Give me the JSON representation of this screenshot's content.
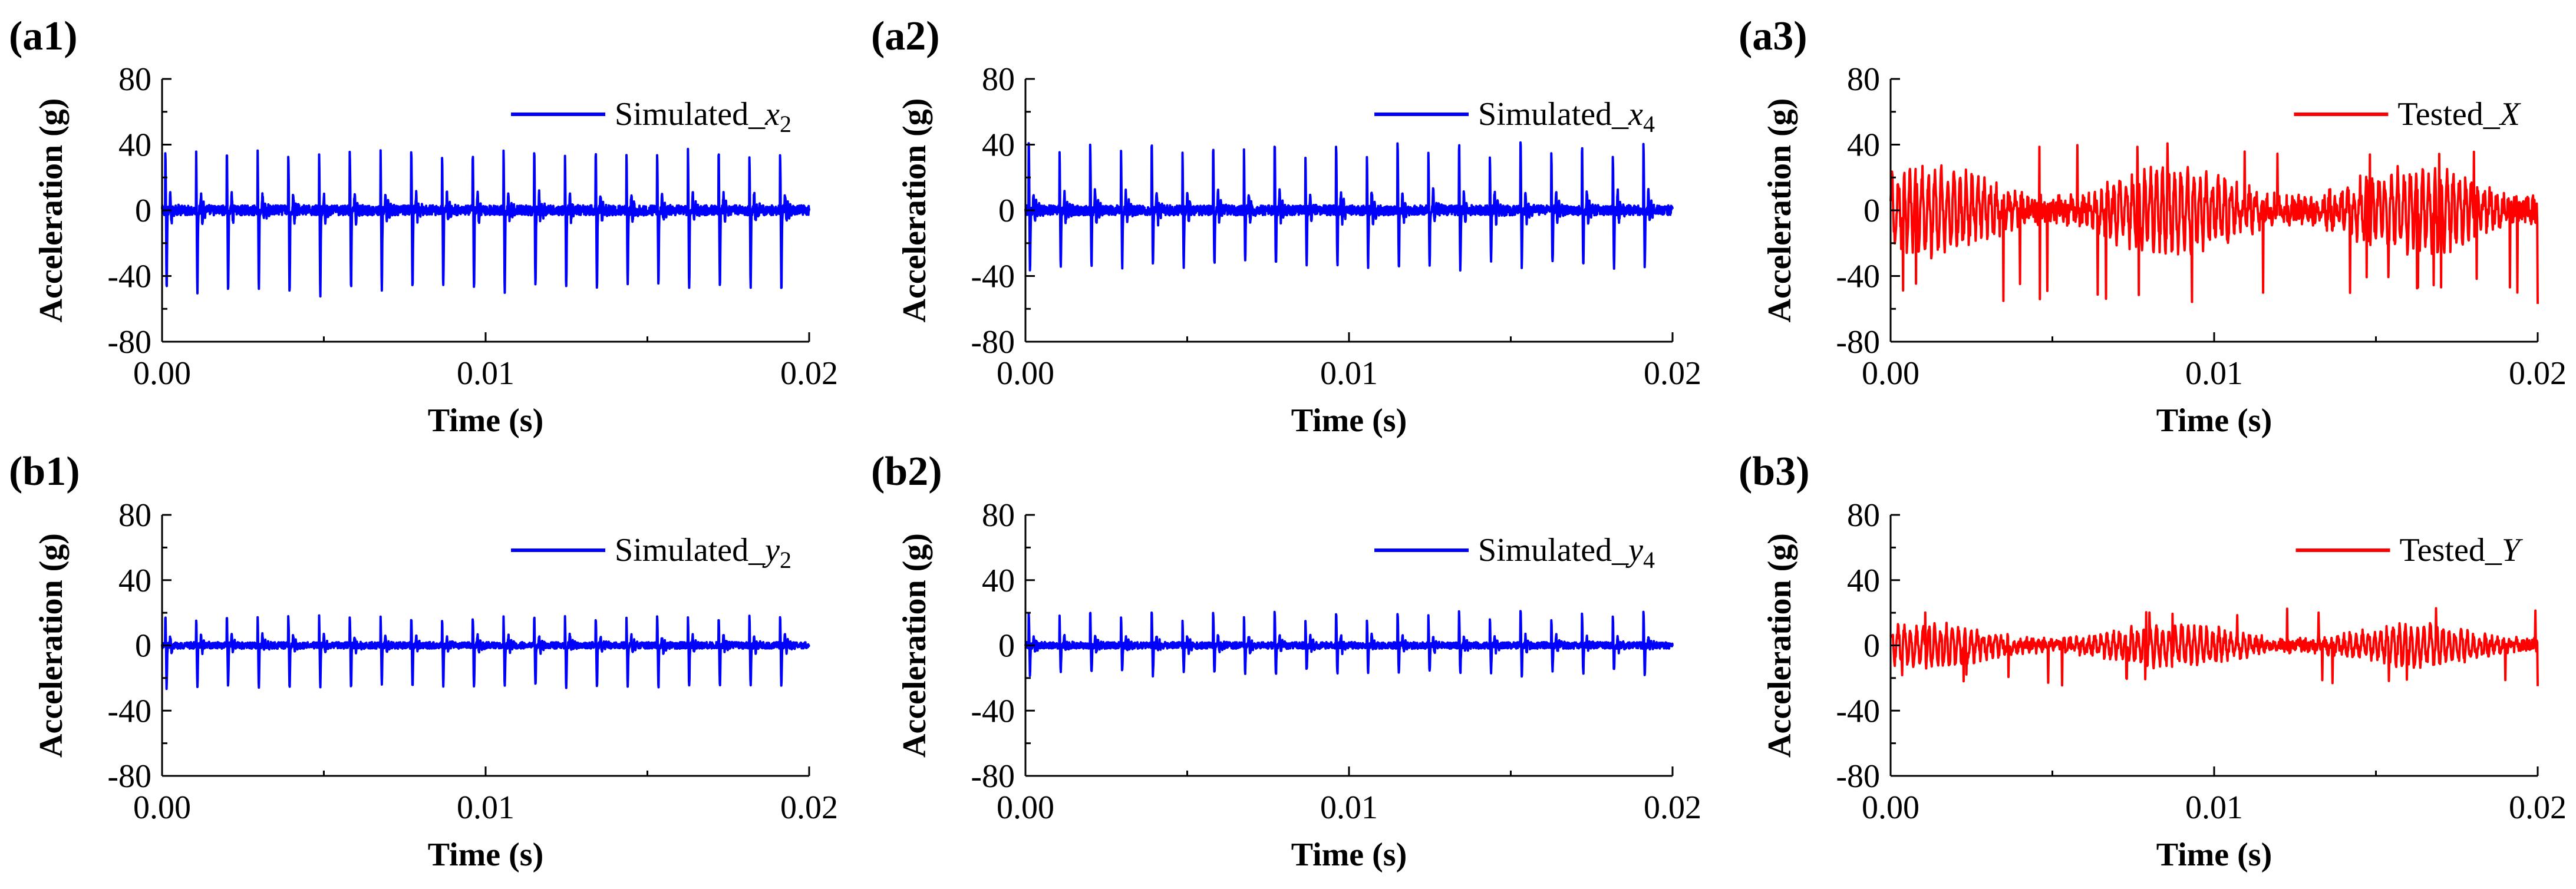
{
  "figure": {
    "panels": [
      "a1",
      "a2",
      "a3",
      "b1",
      "b2",
      "b3"
    ]
  },
  "chart_data": [
    {
      "id": "a1",
      "panel_label": "(a1)",
      "type": "line",
      "xlabel": "Time (s)",
      "ylabel": "Acceleration (g)",
      "xlim": [
        0,
        0.02
      ],
      "ylim": [
        -80,
        80
      ],
      "xticks": [
        0,
        0.01,
        0.02
      ],
      "xtick_labels": [
        "0.00",
        "0.01",
        "0.02"
      ],
      "yticks": [
        -80,
        -40,
        0,
        40,
        80
      ],
      "ytick_labels": [
        "-80",
        "-40",
        "0",
        "40",
        "80"
      ],
      "legend_position": "top-right",
      "series": [
        {
          "name": "Simulated_x2",
          "legend_main": "Simulated_",
          "legend_var": "x",
          "legend_sub": "2",
          "color": "#0000ff",
          "kind": "simulated",
          "period_s": 0.00095,
          "spike_offset_s": 0.0001,
          "peaks_pos": [
            35,
            34,
            35,
            35,
            34,
            35,
            35,
            34,
            35,
            35,
            34,
            35,
            35,
            34,
            35,
            35,
            34,
            35,
            35,
            34,
            35
          ],
          "peaks_neg": [
            -50,
            -49,
            -50,
            -48,
            -49,
            -50,
            -48,
            -49,
            -50,
            -48,
            -49,
            -50,
            -48,
            -49,
            -50,
            -48,
            -49,
            -50,
            -48,
            -49,
            -50
          ],
          "secondary_amp": 12,
          "noise_amp": 3
        }
      ]
    },
    {
      "id": "a2",
      "panel_label": "(a2)",
      "type": "line",
      "xlabel": "Time (s)",
      "ylabel": "Acceleration (g)",
      "xlim": [
        0,
        0.02
      ],
      "ylim": [
        -80,
        80
      ],
      "xticks": [
        0,
        0.01,
        0.02
      ],
      "xtick_labels": [
        "0.00",
        "0.01",
        "0.02"
      ],
      "yticks": [
        -80,
        -40,
        0,
        40,
        80
      ],
      "ytick_labels": [
        "-80",
        "-40",
        "0",
        "40",
        "80"
      ],
      "legend_position": "top-right",
      "series": [
        {
          "name": "Simulated_x4",
          "legend_main": "Simulated_",
          "legend_var": "x",
          "legend_sub": "4",
          "color": "#0000ff",
          "kind": "simulated",
          "period_s": 0.00095,
          "spike_offset_s": 0.0001,
          "peaks_pos": [
            40,
            35,
            40,
            35,
            40,
            35,
            40,
            35,
            40,
            35,
            40,
            35,
            40,
            35,
            40,
            35,
            40,
            35,
            40,
            35,
            40
          ],
          "peaks_neg": [
            -35,
            -33,
            -35,
            -33,
            -35,
            -33,
            -35,
            -33,
            -35,
            -33,
            -35,
            -33,
            -35,
            -33,
            -35,
            -33,
            -35,
            -33,
            -35,
            -33,
            -35
          ],
          "secondary_amp": 14,
          "noise_amp": 3
        }
      ]
    },
    {
      "id": "a3",
      "panel_label": "(a3)",
      "type": "line",
      "xlabel": "Time (s)",
      "ylabel": "Acceleration (g)",
      "xlim": [
        0,
        0.02
      ],
      "ylim": [
        -80,
        80
      ],
      "xticks": [
        0,
        0.01,
        0.02
      ],
      "xtick_labels": [
        "0.00",
        "0.01",
        "0.02"
      ],
      "yticks": [
        -80,
        -40,
        0,
        40,
        80
      ],
      "ytick_labels": [
        "-80",
        "-40",
        "0",
        "40",
        "80"
      ],
      "legend_position": "top-right",
      "series": [
        {
          "name": "Tested_X",
          "legend_main": "Tested_",
          "legend_var": "X",
          "legend_sub": "",
          "color": "#ff0000",
          "kind": "tested",
          "base_amp": 22,
          "max_pos": 42,
          "min_neg": -57
        }
      ]
    },
    {
      "id": "b1",
      "panel_label": "(b1)",
      "type": "line",
      "xlabel": "Time (s)",
      "ylabel": "Acceleration (g)",
      "xlim": [
        0,
        0.02
      ],
      "ylim": [
        -80,
        80
      ],
      "xticks": [
        0,
        0.01,
        0.02
      ],
      "xtick_labels": [
        "0.00",
        "0.01",
        "0.02"
      ],
      "yticks": [
        -80,
        -40,
        0,
        40,
        80
      ],
      "ytick_labels": [
        "-80",
        "-40",
        "0",
        "40",
        "80"
      ],
      "legend_position": "top-right",
      "series": [
        {
          "name": "Simulated_y2",
          "legend_main": "Simulated_",
          "legend_var": "y",
          "legend_sub": "2",
          "color": "#0000ff",
          "kind": "simulated",
          "period_s": 0.00095,
          "spike_offset_s": 0.0001,
          "peaks_pos": [
            18,
            17,
            18,
            17,
            18,
            17,
            18,
            17,
            18,
            17,
            18,
            17,
            18,
            17,
            18,
            17,
            18,
            17,
            18,
            17,
            18
          ],
          "peaks_neg": [
            -26,
            -25,
            -26,
            -25,
            -26,
            -25,
            -26,
            -25,
            -26,
            -25,
            -26,
            -25,
            -26,
            -25,
            -26,
            -25,
            -26,
            -25,
            -26,
            -25,
            -26
          ],
          "secondary_amp": 7,
          "noise_amp": 2
        }
      ]
    },
    {
      "id": "b2",
      "panel_label": "(b2)",
      "type": "line",
      "xlabel": "Time (s)",
      "ylabel": "Acceleration (g)",
      "xlim": [
        0,
        0.02
      ],
      "ylim": [
        -80,
        80
      ],
      "xticks": [
        0,
        0.01,
        0.02
      ],
      "xtick_labels": [
        "0.00",
        "0.01",
        "0.02"
      ],
      "yticks": [
        -80,
        -40,
        0,
        40,
        80
      ],
      "ytick_labels": [
        "-80",
        "-40",
        "0",
        "40",
        "80"
      ],
      "legend_position": "top-right",
      "series": [
        {
          "name": "Simulated_y4",
          "legend_main": "Simulated_",
          "legend_var": "y",
          "legend_sub": "4",
          "color": "#0000ff",
          "kind": "simulated",
          "period_s": 0.00095,
          "spike_offset_s": 0.0001,
          "peaks_pos": [
            20,
            17,
            20,
            17,
            20,
            17,
            20,
            17,
            20,
            17,
            20,
            17,
            20,
            17,
            20,
            17,
            20,
            17,
            20,
            17,
            20
          ],
          "peaks_neg": [
            -18,
            -16,
            -18,
            -16,
            -18,
            -16,
            -18,
            -16,
            -18,
            -16,
            -18,
            -16,
            -18,
            -16,
            -18,
            -16,
            -18,
            -16,
            -18,
            -16,
            -18
          ],
          "secondary_amp": 7,
          "noise_amp": 2
        }
      ]
    },
    {
      "id": "b3",
      "panel_label": "(b3)",
      "type": "line",
      "xlabel": "Time (s)",
      "ylabel": "Acceleration (g)",
      "xlim": [
        0,
        0.02
      ],
      "ylim": [
        -80,
        80
      ],
      "xticks": [
        0,
        0.01,
        0.02
      ],
      "xtick_labels": [
        "0.00",
        "0.01",
        "0.02"
      ],
      "yticks": [
        -80,
        -40,
        0,
        40,
        80
      ],
      "ytick_labels": [
        "-80",
        "-40",
        "0",
        "40",
        "80"
      ],
      "legend_position": "top-right",
      "series": [
        {
          "name": "Tested_Y",
          "legend_main": "Tested_",
          "legend_var": "Y",
          "legend_sub": "",
          "color": "#ff0000",
          "kind": "tested",
          "base_amp": 11,
          "max_pos": 23,
          "min_neg": -25
        }
      ]
    }
  ]
}
